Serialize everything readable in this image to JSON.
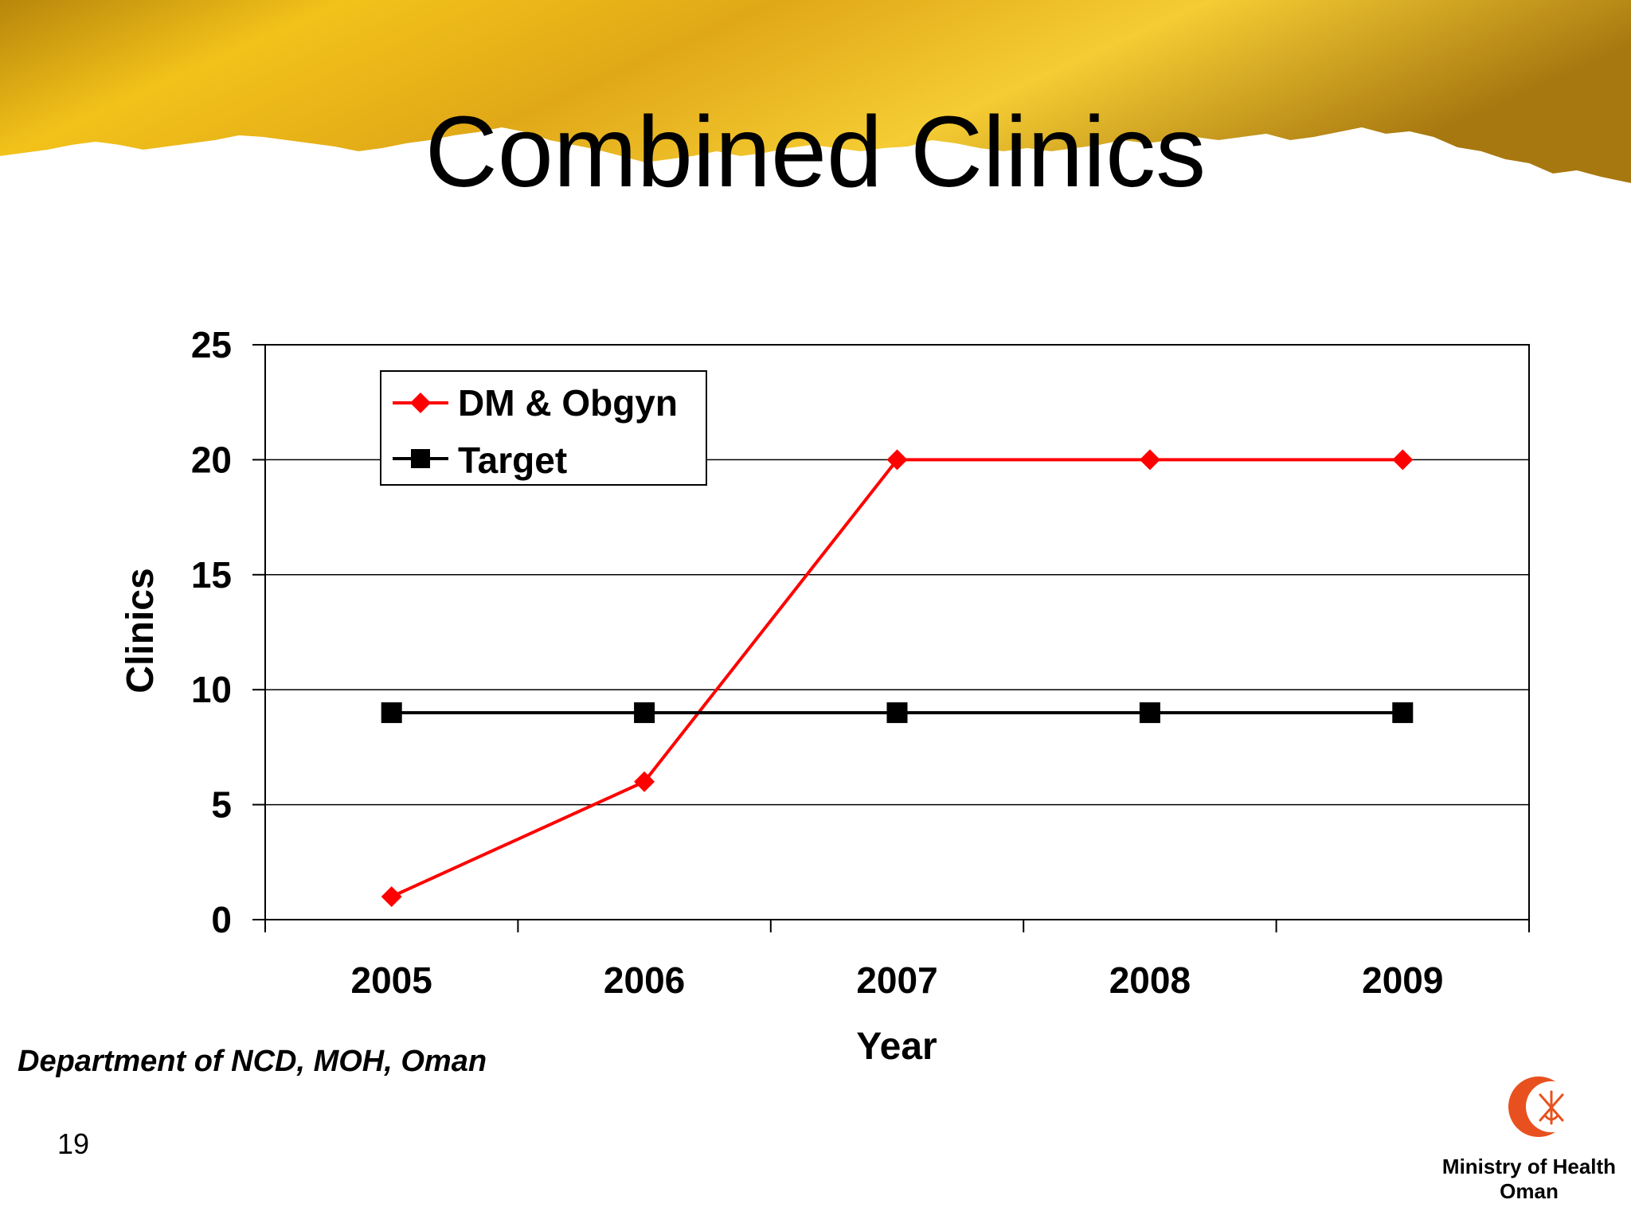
{
  "slide": {
    "title": "Combined Clinics",
    "source_note": "Department of NCD, MOH, Oman",
    "page_number": "19",
    "org_name_line1": "Ministry of Health",
    "org_name_line2": "Oman"
  },
  "colors": {
    "banner_gold": "#e8b41c",
    "dm_series": "#ff0000",
    "target_series": "#000000",
    "logo_red": "#e8511f"
  },
  "chart_data": {
    "type": "line",
    "xlabel": "Year",
    "ylabel": "Clinics",
    "categories": [
      "2005",
      "2006",
      "2007",
      "2008",
      "2009"
    ],
    "ylim": [
      0,
      25
    ],
    "yticks": [
      "0",
      "5",
      "10",
      "15",
      "20",
      "25"
    ],
    "grid": true,
    "legend_position": "top-left",
    "series": [
      {
        "name": "DM & Obgyn",
        "values": [
          1,
          6,
          20,
          20,
          20
        ],
        "marker": "diamond",
        "color": "#ff0000"
      },
      {
        "name": "Target",
        "values": [
          9,
          9,
          9,
          9,
          9
        ],
        "marker": "square",
        "color": "#000000"
      }
    ]
  }
}
